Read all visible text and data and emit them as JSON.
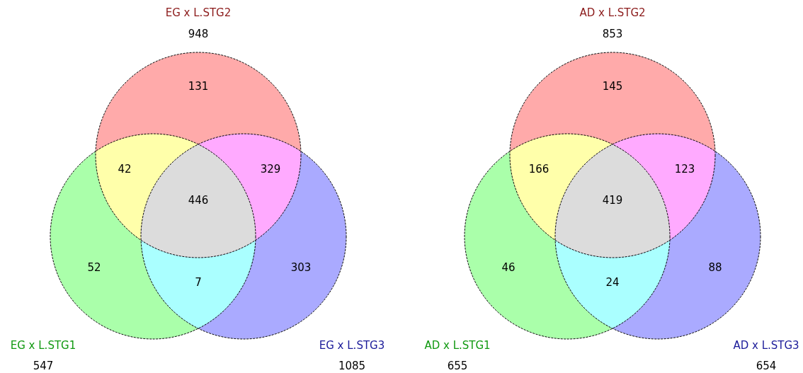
{
  "chart_data": [
    {
      "type": "other",
      "data_labels": true,
      "categories": [
        "EG x L.STG1",
        "EG x L.STG2",
        "EG x L.STG3"
      ],
      "values": [
        547,
        948,
        1085
      ],
      "colors": [
        "#119911",
        "#8b1a1a",
        "#1a1a99"
      ],
      "annotations": [
        "131",
        "42",
        "329",
        "446",
        "52",
        "7",
        "303"
      ]
    },
    {
      "type": "other",
      "data_labels": true,
      "categories": [
        "AD x L.STG1",
        "AD x L.STG2",
        "AD x L.STG3"
      ],
      "values": [
        655,
        853,
        654
      ],
      "colors": [
        "#119911",
        "#8b1a1a",
        "#1a1a99"
      ],
      "annotations": [
        "145",
        "166",
        "123",
        "419",
        "46",
        "24",
        "88"
      ]
    }
  ]
}
